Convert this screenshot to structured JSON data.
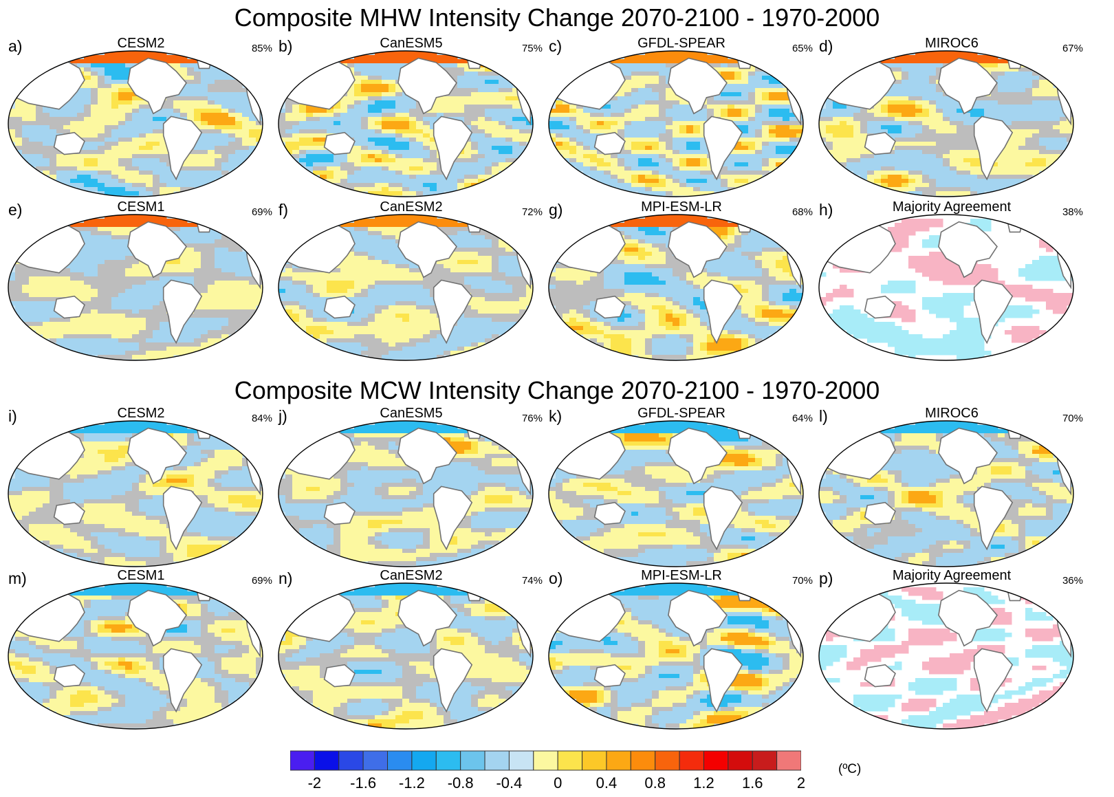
{
  "titles": {
    "mhw": "Composite MHW Intensity Change 2070-2100 - 1970-2000",
    "mcw": "Composite MCW Intensity Change 2070-2100 - 1970-2000"
  },
  "panels": [
    {
      "letter": "a)",
      "model": "CESM2",
      "percent": "85%",
      "mode": "mhw",
      "seed": 11
    },
    {
      "letter": "b)",
      "model": "CanESM5",
      "percent": "75%",
      "mode": "mhw",
      "seed": 23
    },
    {
      "letter": "c)",
      "model": "GFDL-SPEAR",
      "percent": "65%",
      "mode": "mhw",
      "seed": 37
    },
    {
      "letter": "d)",
      "model": "MIROC6",
      "percent": "67%",
      "mode": "mhw",
      "seed": 41
    },
    {
      "letter": "e)",
      "model": "CESM1",
      "percent": "69%",
      "mode": "mhw",
      "seed": 53
    },
    {
      "letter": "f)",
      "model": "CanESM2",
      "percent": "72%",
      "mode": "mhw",
      "seed": 67
    },
    {
      "letter": "g)",
      "model": "MPI-ESM-LR",
      "percent": "68%",
      "mode": "mhw",
      "seed": 71
    },
    {
      "letter": "h)",
      "model": "Majority Agreement",
      "percent": "38%",
      "mode": "agree",
      "seed": 83
    },
    {
      "letter": "i)",
      "model": "CESM2",
      "percent": "84%",
      "mode": "mcw",
      "seed": 97
    },
    {
      "letter": "j)",
      "model": "CanESM5",
      "percent": "76%",
      "mode": "mcw",
      "seed": 101
    },
    {
      "letter": "k)",
      "model": "GFDL-SPEAR",
      "percent": "64%",
      "mode": "mcw",
      "seed": 113
    },
    {
      "letter": "l)",
      "model": "MIROC6",
      "percent": "70%",
      "mode": "mcw",
      "seed": 127
    },
    {
      "letter": "m)",
      "model": "CESM1",
      "percent": "69%",
      "mode": "mcw",
      "seed": 131
    },
    {
      "letter": "n)",
      "model": "CanESM2",
      "percent": "74%",
      "mode": "mcw",
      "seed": 149
    },
    {
      "letter": "o)",
      "model": "MPI-ESM-LR",
      "percent": "70%",
      "mode": "mcw",
      "seed": 157
    },
    {
      "letter": "p)",
      "model": "Majority Agreement",
      "percent": "36%",
      "mode": "agree",
      "seed": 163
    }
  ],
  "colorbar": {
    "colors": [
      "#4a1ef0",
      "#0a10e8",
      "#2a48e6",
      "#3f6ee8",
      "#2a8cf0",
      "#14a8f0",
      "#2cbcf0",
      "#6cc4ec",
      "#a4d4f0",
      "#c8e4f4",
      "#fcf8a0",
      "#fce44c",
      "#fcc828",
      "#fca814",
      "#fc8c0c",
      "#f8640c",
      "#f42c0c",
      "#f40000",
      "#d40c0c",
      "#c81c1c",
      "#f07878"
    ],
    "tick_labels": [
      "-2",
      "-1.6",
      "-1.2",
      "-0.8",
      "-0.4",
      "0",
      "0.4",
      "0.8",
      "1.2",
      "1.6",
      "2"
    ],
    "unit": "(ºC)"
  },
  "land_color": "#ffffff",
  "coast_color": "#707070",
  "insignificant_color": "#bdbdbd",
  "agreement_colors": {
    "warming": "#f8b4c4",
    "cooling": "#a8ecf8"
  }
}
